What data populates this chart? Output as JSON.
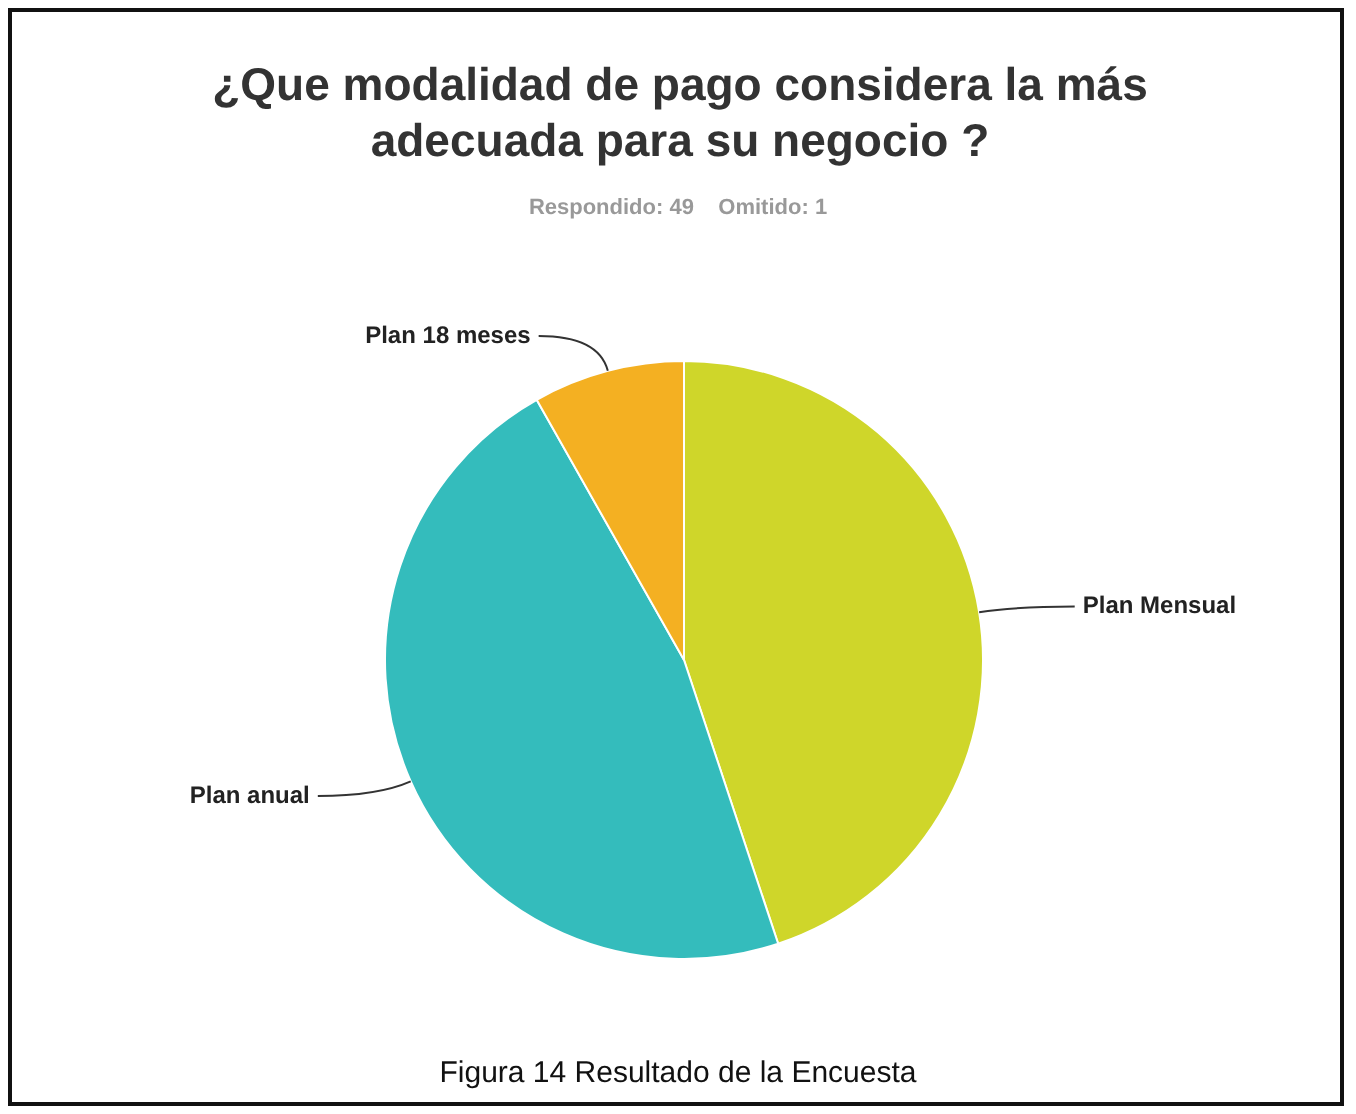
{
  "chart_data": {
    "type": "pie",
    "title": "¿Que modalidad de pago considera la más adecuada para su negocio ?",
    "subtitle": "Respondido: 49    Omitido: 1",
    "categories": [
      "Plan Mensual",
      "Plan anual",
      "Plan 18 meses"
    ],
    "values": [
      44.9,
      46.9,
      8.2
    ],
    "colors": [
      "#cfd62a",
      "#34bcbc",
      "#f4b022"
    ],
    "legend": false,
    "annotations": [
      "Figura 14 Resultado de la Encuesta"
    ]
  }
}
